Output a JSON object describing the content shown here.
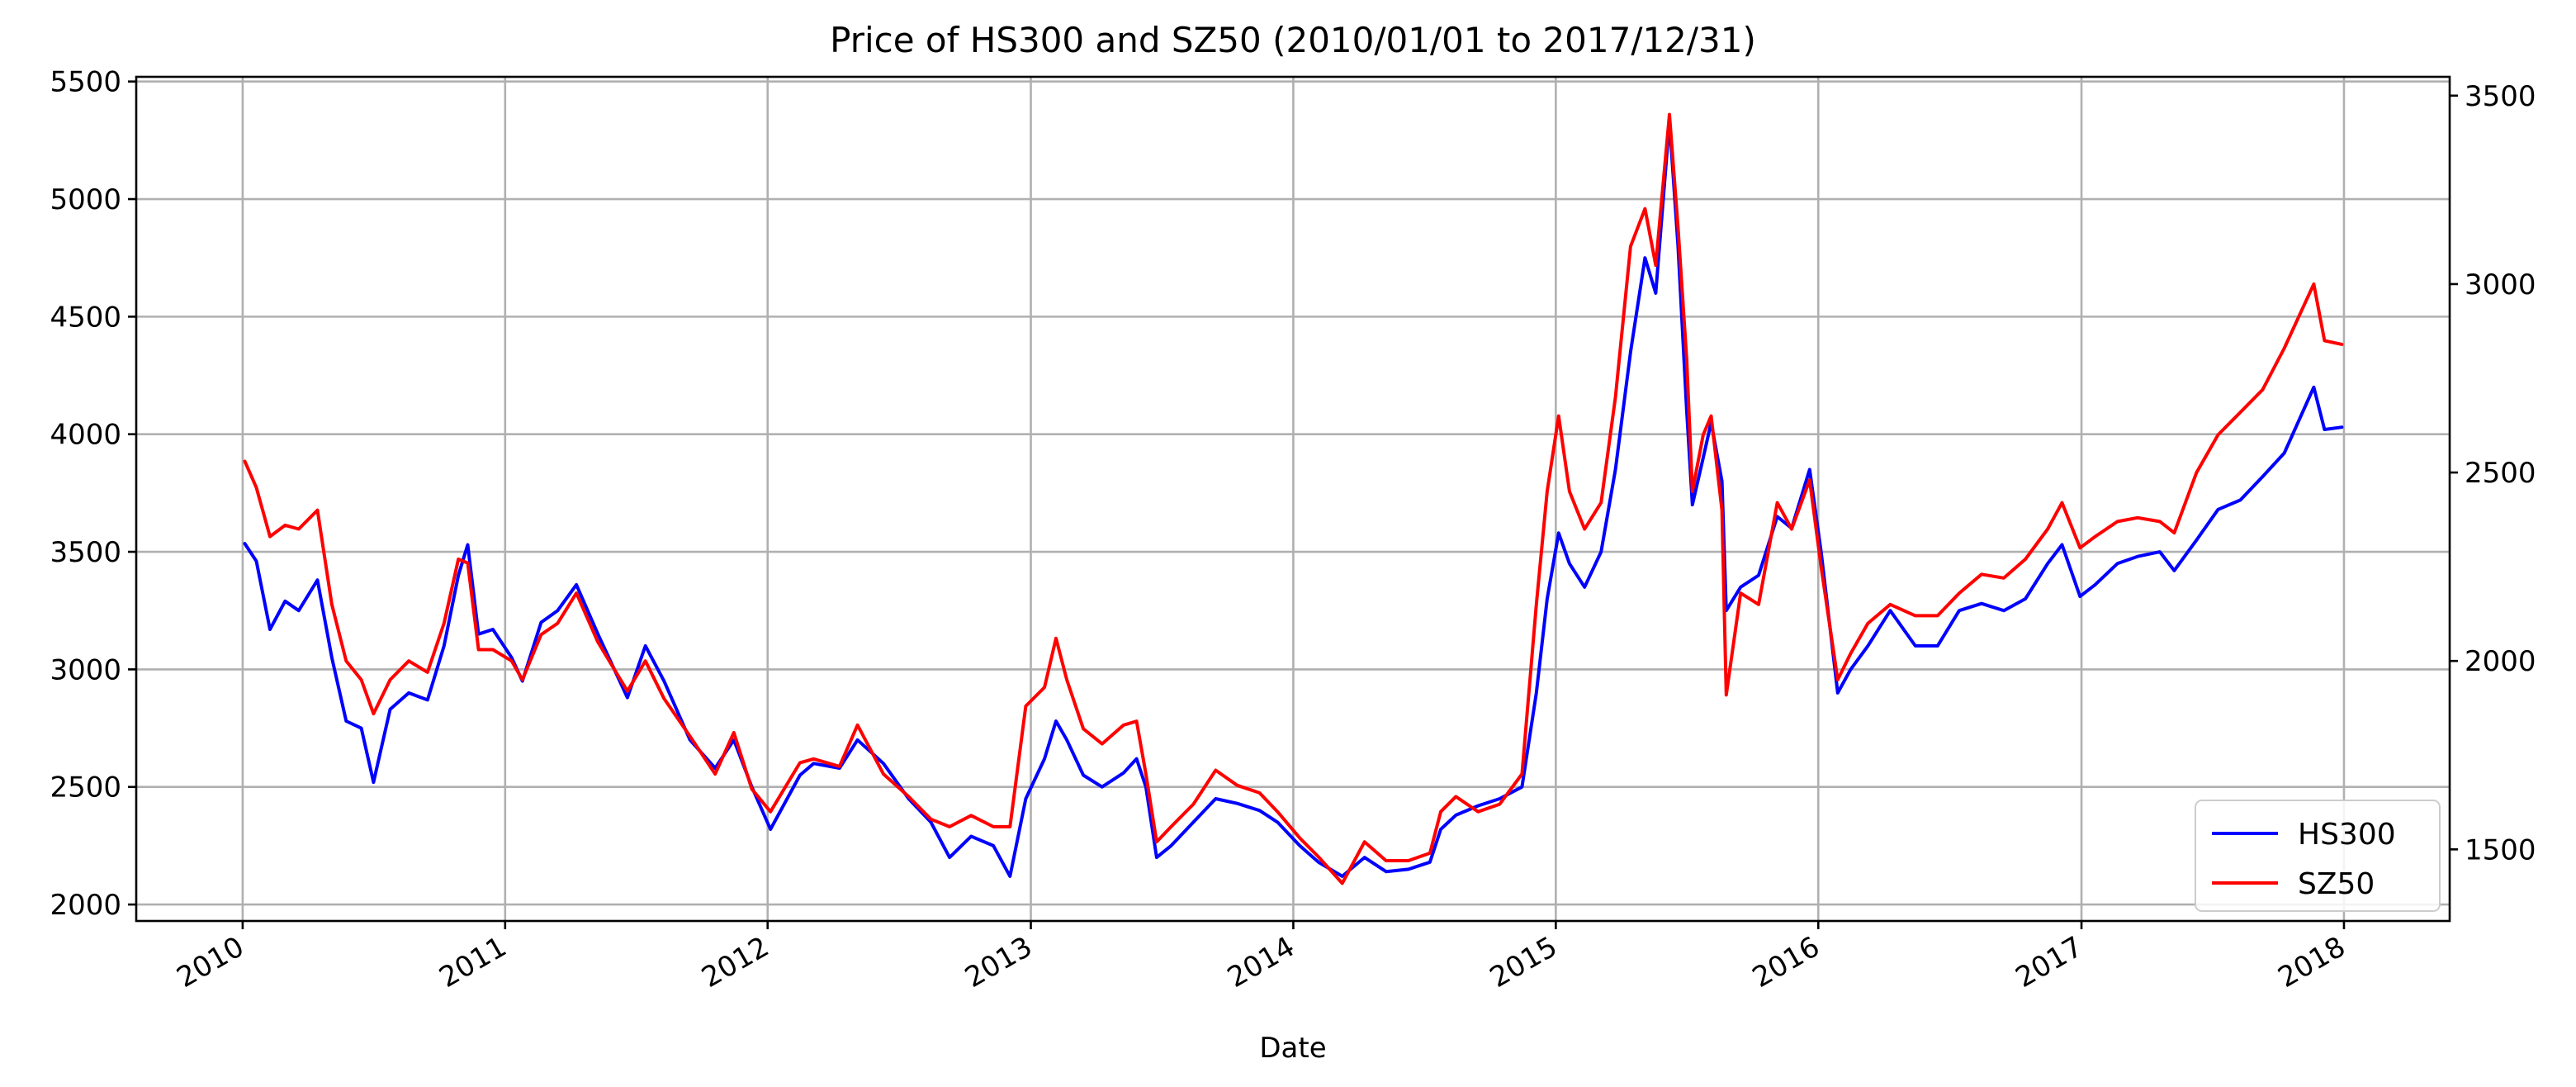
{
  "chart_data": {
    "type": "line",
    "title": "Price of HS300 and SZ50 (2010/01/01 to 2017/12/31)",
    "xlabel": "Date",
    "ylabel_left": "",
    "ylabel_right": "",
    "x_ticks": [
      "2010",
      "2011",
      "2012",
      "2013",
      "2014",
      "2015",
      "2016",
      "2017",
      "2018"
    ],
    "y_left_ticks": [
      "2000",
      "2500",
      "3000",
      "3500",
      "4000",
      "4500",
      "5000",
      "5500"
    ],
    "y_right_ticks": [
      "1500",
      "2000",
      "2500",
      "3000",
      "3500"
    ],
    "xlim": [
      "2009-08-06",
      "2018-05-28"
    ],
    "ylim_left": [
      1930,
      5520
    ],
    "ylim_right": [
      1310,
      3550
    ],
    "grid": true,
    "legend_position": "lower right",
    "series": [
      {
        "name": "HS300",
        "axis": "left",
        "color": "#0000ff",
        "points": [
          [
            "2010-01-04",
            3535
          ],
          [
            "2010-01-20",
            3460
          ],
          [
            "2010-02-08",
            3170
          ],
          [
            "2010-03-01",
            3290
          ],
          [
            "2010-03-20",
            3250
          ],
          [
            "2010-04-15",
            3380
          ],
          [
            "2010-05-05",
            3050
          ],
          [
            "2010-05-25",
            2780
          ],
          [
            "2010-06-15",
            2750
          ],
          [
            "2010-07-02",
            2520
          ],
          [
            "2010-07-25",
            2830
          ],
          [
            "2010-08-20",
            2900
          ],
          [
            "2010-09-15",
            2870
          ],
          [
            "2010-10-08",
            3100
          ],
          [
            "2010-10-28",
            3400
          ],
          [
            "2010-11-10",
            3530
          ],
          [
            "2010-11-25",
            3150
          ],
          [
            "2010-12-15",
            3170
          ],
          [
            "2011-01-10",
            3050
          ],
          [
            "2011-01-25",
            2950
          ],
          [
            "2011-02-20",
            3200
          ],
          [
            "2011-03-15",
            3250
          ],
          [
            "2011-04-10",
            3360
          ],
          [
            "2011-05-10",
            3150
          ],
          [
            "2011-06-20",
            2880
          ],
          [
            "2011-07-15",
            3100
          ],
          [
            "2011-08-10",
            2950
          ],
          [
            "2011-09-15",
            2700
          ],
          [
            "2011-10-20",
            2580
          ],
          [
            "2011-11-15",
            2700
          ],
          [
            "2011-12-10",
            2500
          ],
          [
            "2012-01-05",
            2320
          ],
          [
            "2012-02-15",
            2550
          ],
          [
            "2012-03-05",
            2600
          ],
          [
            "2012-04-10",
            2580
          ],
          [
            "2012-05-05",
            2700
          ],
          [
            "2012-06-10",
            2600
          ],
          [
            "2012-07-15",
            2450
          ],
          [
            "2012-08-15",
            2350
          ],
          [
            "2012-09-10",
            2200
          ],
          [
            "2012-10-10",
            2290
          ],
          [
            "2012-11-10",
            2250
          ],
          [
            "2012-12-03",
            2120
          ],
          [
            "2012-12-25",
            2450
          ],
          [
            "2013-01-20",
            2620
          ],
          [
            "2013-02-05",
            2780
          ],
          [
            "2013-02-20",
            2700
          ],
          [
            "2013-03-15",
            2550
          ],
          [
            "2013-04-10",
            2500
          ],
          [
            "2013-05-10",
            2560
          ],
          [
            "2013-05-28",
            2620
          ],
          [
            "2013-06-10",
            2500
          ],
          [
            "2013-06-25",
            2200
          ],
          [
            "2013-07-15",
            2250
          ],
          [
            "2013-08-15",
            2350
          ],
          [
            "2013-09-15",
            2450
          ],
          [
            "2013-10-15",
            2430
          ],
          [
            "2013-11-15",
            2400
          ],
          [
            "2013-12-10",
            2350
          ],
          [
            "2014-01-10",
            2250
          ],
          [
            "2014-02-05",
            2180
          ],
          [
            "2014-03-10",
            2120
          ],
          [
            "2014-04-10",
            2200
          ],
          [
            "2014-05-10",
            2140
          ],
          [
            "2014-06-10",
            2150
          ],
          [
            "2014-07-10",
            2180
          ],
          [
            "2014-07-25",
            2320
          ],
          [
            "2014-08-15",
            2380
          ],
          [
            "2014-09-15",
            2420
          ],
          [
            "2014-10-15",
            2450
          ],
          [
            "2014-11-15",
            2500
          ],
          [
            "2014-12-05",
            2900
          ],
          [
            "2014-12-20",
            3300
          ],
          [
            "2015-01-05",
            3580
          ],
          [
            "2015-01-20",
            3450
          ],
          [
            "2015-02-10",
            3350
          ],
          [
            "2015-03-05",
            3500
          ],
          [
            "2015-03-25",
            3850
          ],
          [
            "2015-04-15",
            4350
          ],
          [
            "2015-05-05",
            4750
          ],
          [
            "2015-05-20",
            4600
          ],
          [
            "2015-06-08",
            5330
          ],
          [
            "2015-06-20",
            4800
          ],
          [
            "2015-07-02",
            4100
          ],
          [
            "2015-07-10",
            3700
          ],
          [
            "2015-07-25",
            3900
          ],
          [
            "2015-08-05",
            4050
          ],
          [
            "2015-08-20",
            3800
          ],
          [
            "2015-08-26",
            3250
          ],
          [
            "2015-09-15",
            3350
          ],
          [
            "2015-10-10",
            3400
          ],
          [
            "2015-11-05",
            3650
          ],
          [
            "2015-11-25",
            3600
          ],
          [
            "2015-12-20",
            3850
          ],
          [
            "2016-01-05",
            3500
          ],
          [
            "2016-01-28",
            2900
          ],
          [
            "2016-02-15",
            3000
          ],
          [
            "2016-03-10",
            3100
          ],
          [
            "2016-04-10",
            3250
          ],
          [
            "2016-05-15",
            3100
          ],
          [
            "2016-06-15",
            3100
          ],
          [
            "2016-07-15",
            3250
          ],
          [
            "2016-08-15",
            3280
          ],
          [
            "2016-09-15",
            3250
          ],
          [
            "2016-10-15",
            3300
          ],
          [
            "2016-11-15",
            3450
          ],
          [
            "2016-12-05",
            3530
          ],
          [
            "2016-12-30",
            3310
          ],
          [
            "2017-01-20",
            3360
          ],
          [
            "2017-02-20",
            3450
          ],
          [
            "2017-03-20",
            3480
          ],
          [
            "2017-04-20",
            3500
          ],
          [
            "2017-05-10",
            3420
          ],
          [
            "2017-06-10",
            3550
          ],
          [
            "2017-07-10",
            3680
          ],
          [
            "2017-08-10",
            3720
          ],
          [
            "2017-09-10",
            3820
          ],
          [
            "2017-10-10",
            3920
          ],
          [
            "2017-11-20",
            4200
          ],
          [
            "2017-12-05",
            4020
          ],
          [
            "2017-12-29",
            4030
          ]
        ]
      },
      {
        "name": "SZ50",
        "axis": "right",
        "color": "#ff0000",
        "points": [
          [
            "2010-01-04",
            2530
          ],
          [
            "2010-01-20",
            2460
          ],
          [
            "2010-02-08",
            2330
          ],
          [
            "2010-03-01",
            2360
          ],
          [
            "2010-03-20",
            2350
          ],
          [
            "2010-04-15",
            2400
          ],
          [
            "2010-05-05",
            2150
          ],
          [
            "2010-05-25",
            2000
          ],
          [
            "2010-06-15",
            1950
          ],
          [
            "2010-07-02",
            1860
          ],
          [
            "2010-07-25",
            1950
          ],
          [
            "2010-08-20",
            2000
          ],
          [
            "2010-09-15",
            1970
          ],
          [
            "2010-10-08",
            2100
          ],
          [
            "2010-10-28",
            2270
          ],
          [
            "2010-11-10",
            2260
          ],
          [
            "2010-11-25",
            2030
          ],
          [
            "2010-12-15",
            2030
          ],
          [
            "2011-01-10",
            2000
          ],
          [
            "2011-01-25",
            1950
          ],
          [
            "2011-02-20",
            2070
          ],
          [
            "2011-03-15",
            2100
          ],
          [
            "2011-04-10",
            2180
          ],
          [
            "2011-05-10",
            2050
          ],
          [
            "2011-06-20",
            1920
          ],
          [
            "2011-07-15",
            2000
          ],
          [
            "2011-08-10",
            1900
          ],
          [
            "2011-09-15",
            1800
          ],
          [
            "2011-10-20",
            1700
          ],
          [
            "2011-11-15",
            1810
          ],
          [
            "2011-12-10",
            1660
          ],
          [
            "2012-01-05",
            1600
          ],
          [
            "2012-02-15",
            1730
          ],
          [
            "2012-03-05",
            1740
          ],
          [
            "2012-04-10",
            1720
          ],
          [
            "2012-05-05",
            1830
          ],
          [
            "2012-06-10",
            1700
          ],
          [
            "2012-07-15",
            1640
          ],
          [
            "2012-08-15",
            1580
          ],
          [
            "2012-09-10",
            1560
          ],
          [
            "2012-10-10",
            1590
          ],
          [
            "2012-11-10",
            1560
          ],
          [
            "2012-12-03",
            1560
          ],
          [
            "2012-12-25",
            1880
          ],
          [
            "2013-01-20",
            1930
          ],
          [
            "2013-02-05",
            2060
          ],
          [
            "2013-02-20",
            1950
          ],
          [
            "2013-03-15",
            1820
          ],
          [
            "2013-04-10",
            1780
          ],
          [
            "2013-05-10",
            1830
          ],
          [
            "2013-05-28",
            1840
          ],
          [
            "2013-06-10",
            1700
          ],
          [
            "2013-06-25",
            1520
          ],
          [
            "2013-07-15",
            1560
          ],
          [
            "2013-08-15",
            1620
          ],
          [
            "2013-09-15",
            1710
          ],
          [
            "2013-10-15",
            1670
          ],
          [
            "2013-11-15",
            1650
          ],
          [
            "2013-12-10",
            1600
          ],
          [
            "2014-01-10",
            1530
          ],
          [
            "2014-02-05",
            1480
          ],
          [
            "2014-03-10",
            1410
          ],
          [
            "2014-04-10",
            1520
          ],
          [
            "2014-05-10",
            1470
          ],
          [
            "2014-06-10",
            1470
          ],
          [
            "2014-07-10",
            1490
          ],
          [
            "2014-07-25",
            1600
          ],
          [
            "2014-08-15",
            1640
          ],
          [
            "2014-09-15",
            1600
          ],
          [
            "2014-10-15",
            1620
          ],
          [
            "2014-11-15",
            1700
          ],
          [
            "2014-12-05",
            2150
          ],
          [
            "2014-12-20",
            2450
          ],
          [
            "2015-01-05",
            2650
          ],
          [
            "2015-01-20",
            2450
          ],
          [
            "2015-02-10",
            2350
          ],
          [
            "2015-03-05",
            2420
          ],
          [
            "2015-03-25",
            2700
          ],
          [
            "2015-04-15",
            3100
          ],
          [
            "2015-05-05",
            3200
          ],
          [
            "2015-05-20",
            3050
          ],
          [
            "2015-06-08",
            3450
          ],
          [
            "2015-06-20",
            3150
          ],
          [
            "2015-07-02",
            2800
          ],
          [
            "2015-07-10",
            2450
          ],
          [
            "2015-07-25",
            2600
          ],
          [
            "2015-08-05",
            2650
          ],
          [
            "2015-08-20",
            2400
          ],
          [
            "2015-08-26",
            1910
          ],
          [
            "2015-09-15",
            2180
          ],
          [
            "2015-10-10",
            2150
          ],
          [
            "2015-11-05",
            2420
          ],
          [
            "2015-11-25",
            2350
          ],
          [
            "2015-12-20",
            2480
          ],
          [
            "2016-01-05",
            2250
          ],
          [
            "2016-01-28",
            1950
          ],
          [
            "2016-02-15",
            2020
          ],
          [
            "2016-03-10",
            2100
          ],
          [
            "2016-04-10",
            2150
          ],
          [
            "2016-05-15",
            2120
          ],
          [
            "2016-06-15",
            2120
          ],
          [
            "2016-07-15",
            2180
          ],
          [
            "2016-08-15",
            2230
          ],
          [
            "2016-09-15",
            2220
          ],
          [
            "2016-10-15",
            2270
          ],
          [
            "2016-11-15",
            2350
          ],
          [
            "2016-12-05",
            2420
          ],
          [
            "2016-12-30",
            2300
          ],
          [
            "2017-01-20",
            2330
          ],
          [
            "2017-02-20",
            2370
          ],
          [
            "2017-03-20",
            2380
          ],
          [
            "2017-04-20",
            2370
          ],
          [
            "2017-05-10",
            2340
          ],
          [
            "2017-06-10",
            2500
          ],
          [
            "2017-07-10",
            2600
          ],
          [
            "2017-08-10",
            2660
          ],
          [
            "2017-09-10",
            2720
          ],
          [
            "2017-10-10",
            2830
          ],
          [
            "2017-11-20",
            3000
          ],
          [
            "2017-12-05",
            2850
          ],
          [
            "2017-12-29",
            2840
          ]
        ]
      }
    ]
  }
}
